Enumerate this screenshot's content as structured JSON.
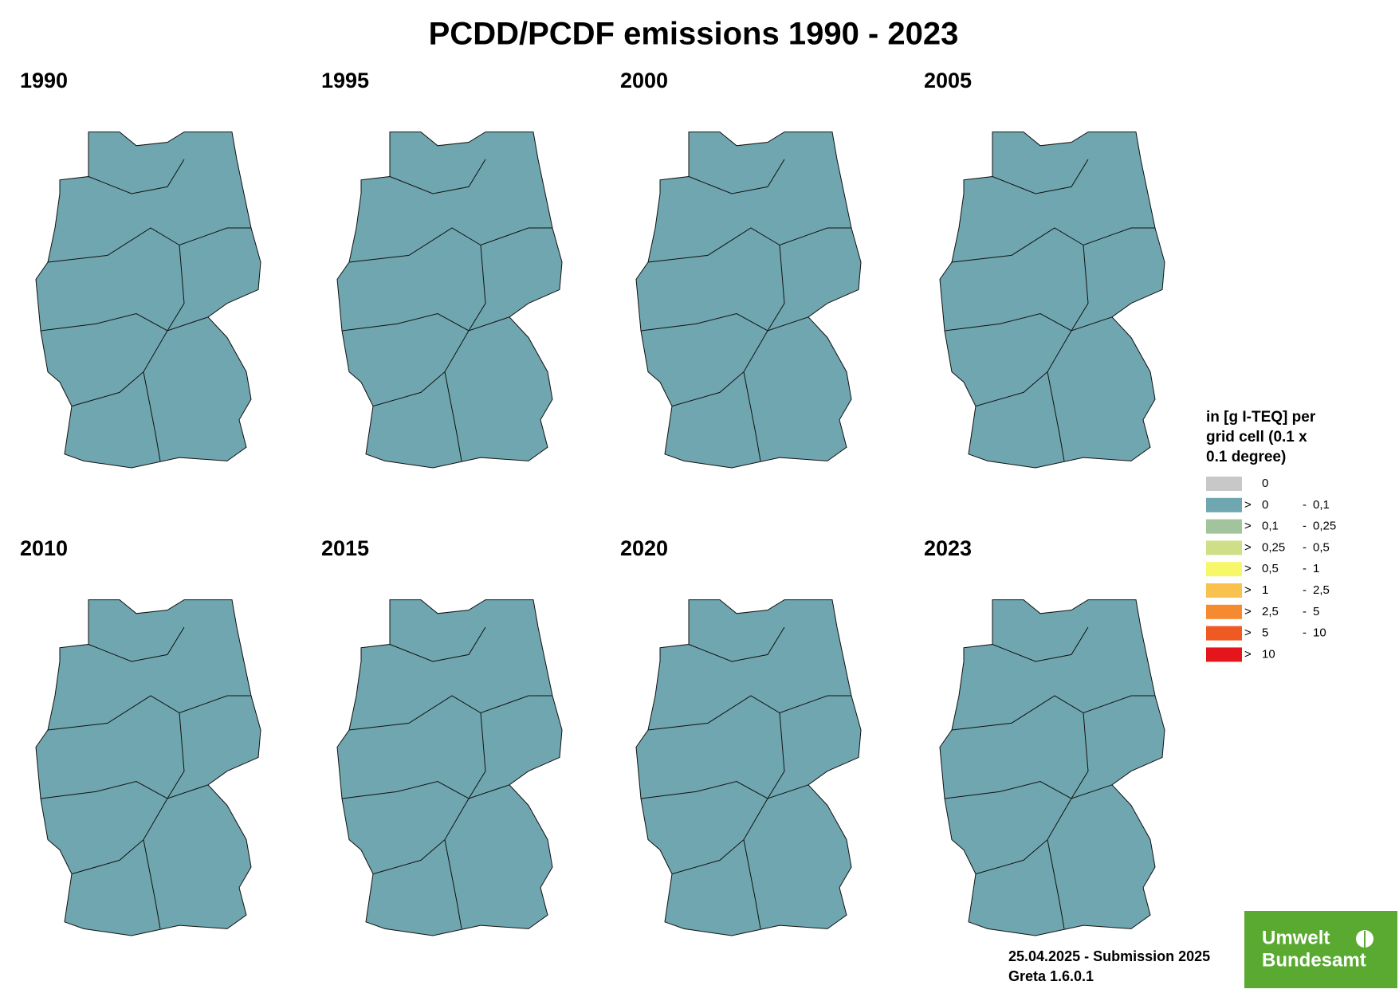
{
  "header": {
    "title": "PCDD/PCDF emissions 1990 - 2023"
  },
  "panels": [
    {
      "year": "1990"
    },
    {
      "year": "1995"
    },
    {
      "year": "2000"
    },
    {
      "year": "2005"
    },
    {
      "year": "2010"
    },
    {
      "year": "2015"
    },
    {
      "year": "2020"
    },
    {
      "year": "2023"
    }
  ],
  "legend": {
    "title": [
      "in [g I-TEQ] per",
      "grid cell (0.1 x",
      "0.1 degree)"
    ],
    "entries": [
      {
        "color": "#c8c8c8",
        "from": "0"
      },
      {
        "color": "#6fa6b0",
        "sign": ">",
        "from": "0",
        "dash": "-",
        "to": "0,1"
      },
      {
        "color": "#a2c49c",
        "sign": ">",
        "from": "0,1",
        "dash": "-",
        "to": "0,25"
      },
      {
        "color": "#cfdf88",
        "sign": ">",
        "from": "0,25",
        "dash": "-",
        "to": "0,5"
      },
      {
        "color": "#f7f76a",
        "sign": ">",
        "from": "0,5",
        "dash": "-",
        "to": "1"
      },
      {
        "color": "#f9c24f",
        "sign": ">",
        "from": "1",
        "dash": "-",
        "to": "2,5"
      },
      {
        "color": "#f68a30",
        "sign": ">",
        "from": "2,5",
        "dash": "-",
        "to": "5"
      },
      {
        "color": "#ee5a22",
        "sign": ">",
        "from": "5",
        "dash": "-",
        "to": "10"
      },
      {
        "color": "#e5161b",
        "sign": ">",
        "from": "10"
      }
    ]
  },
  "footer": {
    "submission": "25.04.2025 - Submission 2025",
    "version": "Greta 1.6.0.1"
  },
  "logo": {
    "line1": "Umwelt",
    "line2": "Bundesamt"
  }
}
